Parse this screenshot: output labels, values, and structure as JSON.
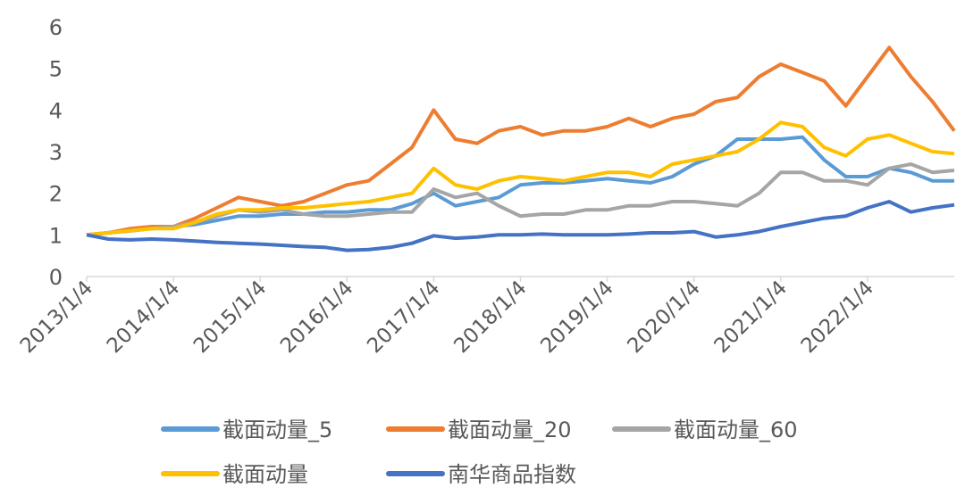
{
  "chart_data": {
    "type": "line",
    "categories": [
      "2013/1/4",
      null,
      null,
      null,
      "2014/1/4",
      null,
      null,
      null,
      "2015/1/4",
      null,
      null,
      null,
      "2016/1/4",
      null,
      null,
      null,
      "2017/1/4",
      null,
      null,
      null,
      "2018/1/4",
      null,
      null,
      null,
      "2019/1/4",
      null,
      null,
      null,
      "2020/1/4",
      null,
      null,
      null,
      "2021/1/4",
      null,
      null,
      null,
      "2022/1/4",
      null,
      null,
      null,
      null
    ],
    "ylim": [
      0,
      6
    ],
    "yticks": [
      0,
      1,
      2,
      3,
      4,
      5,
      6
    ],
    "series": [
      {
        "name": "截面动量_5",
        "color": "#5b9bd5",
        "values": [
          1.0,
          1.05,
          1.1,
          1.15,
          1.2,
          1.25,
          1.35,
          1.45,
          1.45,
          1.5,
          1.5,
          1.55,
          1.55,
          1.6,
          1.6,
          1.75,
          2.0,
          1.7,
          1.8,
          1.9,
          2.2,
          2.25,
          2.25,
          2.3,
          2.35,
          2.3,
          2.25,
          2.4,
          2.7,
          2.9,
          3.3,
          3.3,
          3.3,
          3.35,
          2.8,
          2.4,
          2.4,
          2.6,
          2.5,
          2.3,
          2.3
        ]
      },
      {
        "name": "截面动量_20",
        "color": "#ed7d31",
        "values": [
          1.0,
          1.05,
          1.15,
          1.2,
          1.2,
          1.4,
          1.65,
          1.9,
          1.8,
          1.7,
          1.8,
          2.0,
          2.2,
          2.3,
          2.7,
          3.1,
          4.0,
          3.3,
          3.2,
          3.5,
          3.6,
          3.4,
          3.5,
          3.5,
          3.6,
          3.8,
          3.6,
          3.8,
          3.9,
          4.2,
          4.3,
          4.8,
          5.1,
          4.9,
          4.7,
          4.1,
          4.8,
          5.5,
          4.8,
          4.2,
          3.5
        ]
      },
      {
        "name": "截面动量_60",
        "color": "#a5a5a5",
        "values": [
          1.0,
          1.05,
          1.1,
          1.15,
          1.2,
          1.3,
          1.45,
          1.6,
          1.55,
          1.6,
          1.5,
          1.45,
          1.45,
          1.5,
          1.55,
          1.55,
          2.1,
          1.9,
          2.0,
          1.7,
          1.45,
          1.5,
          1.5,
          1.6,
          1.6,
          1.7,
          1.7,
          1.8,
          1.8,
          1.75,
          1.7,
          2.0,
          2.5,
          2.5,
          2.3,
          2.3,
          2.2,
          2.6,
          2.7,
          2.5,
          2.55
        ]
      },
      {
        "name": "截面动量",
        "color": "#ffc000",
        "values": [
          1.0,
          1.05,
          1.1,
          1.15,
          1.15,
          1.3,
          1.5,
          1.6,
          1.6,
          1.65,
          1.65,
          1.7,
          1.75,
          1.8,
          1.9,
          2.0,
          2.6,
          2.2,
          2.1,
          2.3,
          2.4,
          2.35,
          2.3,
          2.4,
          2.5,
          2.5,
          2.4,
          2.7,
          2.8,
          2.9,
          3.0,
          3.3,
          3.7,
          3.6,
          3.1,
          2.9,
          3.3,
          3.4,
          3.2,
          3.0,
          2.95
        ]
      },
      {
        "name": "南华商品指数",
        "color": "#4472c4",
        "values": [
          1.0,
          0.9,
          0.88,
          0.9,
          0.88,
          0.85,
          0.82,
          0.8,
          0.78,
          0.75,
          0.72,
          0.7,
          0.63,
          0.65,
          0.7,
          0.8,
          0.98,
          0.92,
          0.95,
          1.0,
          1.0,
          1.02,
          1.0,
          1.0,
          1.0,
          1.02,
          1.05,
          1.05,
          1.08,
          0.95,
          1.0,
          1.08,
          1.2,
          1.3,
          1.4,
          1.45,
          1.65,
          1.8,
          1.55,
          1.65,
          1.72
        ]
      }
    ]
  }
}
